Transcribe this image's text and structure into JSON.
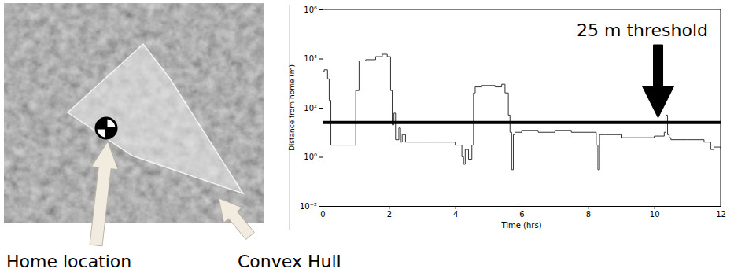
{
  "chart_data": {
    "type": "line",
    "x_label": "Time (hrs)",
    "y_label": "Distance from home (m)",
    "x": [
      0,
      0.05,
      0.15,
      0.2,
      0.25,
      0.35,
      0.9,
      0.95,
      1.0,
      1.1,
      1.3,
      1.6,
      1.8,
      1.95,
      2.05,
      2.1,
      2.15,
      2.2,
      2.3,
      2.35,
      2.4,
      2.5,
      3.0,
      3.5,
      4.0,
      4.2,
      4.25,
      4.3,
      4.4,
      4.5,
      4.55,
      4.6,
      4.8,
      5.0,
      5.2,
      5.4,
      5.5,
      5.6,
      5.65,
      5.7,
      5.75,
      5.8,
      6.0,
      6.5,
      7.0,
      7.5,
      8.0,
      8.25,
      8.3,
      8.35,
      8.5,
      9.0,
      9.5,
      10.0,
      10.3,
      10.35,
      10.4,
      10.45,
      10.5,
      11.0,
      11.5,
      11.7,
      11.8,
      12.0
    ],
    "values": [
      3000,
      3500,
      1500,
      200,
      3,
      3,
      3,
      3,
      500,
      8000,
      9000,
      12000,
      15000,
      12000,
      500,
      20,
      60,
      5,
      15,
      4,
      8,
      4,
      4,
      4,
      3,
      1,
      0.5,
      2,
      0.8,
      3,
      400,
      700,
      800,
      800,
      700,
      900,
      400,
      50,
      10,
      0.3,
      8,
      10,
      12,
      10,
      12,
      10,
      10,
      3,
      0.3,
      8,
      8,
      6,
      6,
      7,
      10,
      50,
      8,
      6,
      5,
      5,
      4,
      2,
      2.5,
      2
    ],
    "color": "#333333",
    "xlim": [
      0,
      12
    ],
    "xticks": [
      0,
      2,
      4,
      6,
      8,
      10,
      12
    ],
    "ylim": [
      0.01,
      1000000
    ],
    "yticks": [
      {
        "value": 0.01,
        "label": "10⁻²"
      },
      {
        "value": 1,
        "label": "10⁰"
      },
      {
        "value": 100,
        "label": "10²"
      },
      {
        "value": 10000,
        "label": "10⁴"
      },
      {
        "value": 1000000,
        "label": "10⁶"
      }
    ],
    "log": "y",
    "grid": false,
    "threshold": {
      "value": 25,
      "label": "25 m threshold"
    }
  },
  "map_panel": {
    "labels": [
      "Home location",
      "Convex Hull"
    ]
  }
}
